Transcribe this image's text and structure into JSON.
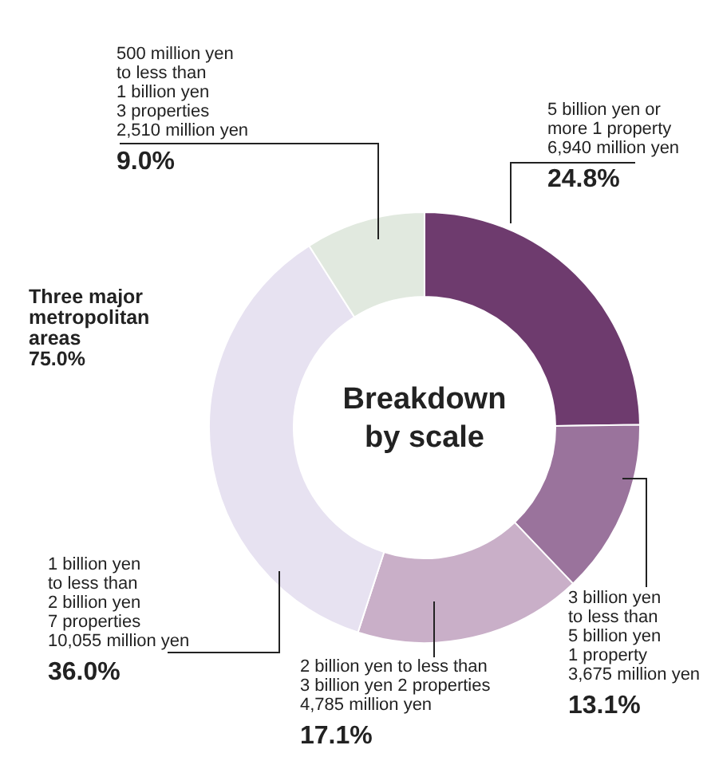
{
  "chart_data": {
    "type": "donut",
    "title": "Breakdown\nby scale",
    "categories": [
      "5 billion yen or\nmore 1 property\n6,940 million yen",
      "3 billion yen\nto less than\n5 billion yen\n1 property\n3,675 million yen",
      "2 billion yen to less than\n3 billion yen 2 properties\n4,785 million yen",
      "1 billion yen\nto less than\n2 billion yen\n7 properties\n10,055 million yen",
      "500 million yen\nto less than\n1 billion yen\n3 properties\n2,510 million yen"
    ],
    "values": [
      24.8,
      13.1,
      17.1,
      36.0,
      9.0
    ],
    "value_labels": [
      "24.8%",
      "13.1%",
      "17.1%",
      "36.0%",
      "9.0%"
    ],
    "colors": [
      "#6e3b6e",
      "#9a739c",
      "#c9afc8",
      "#e7e2f1",
      "#e1e9df"
    ],
    "annotations": [
      "Three major\nmetropolitan\nareas\n75.0%"
    ]
  }
}
